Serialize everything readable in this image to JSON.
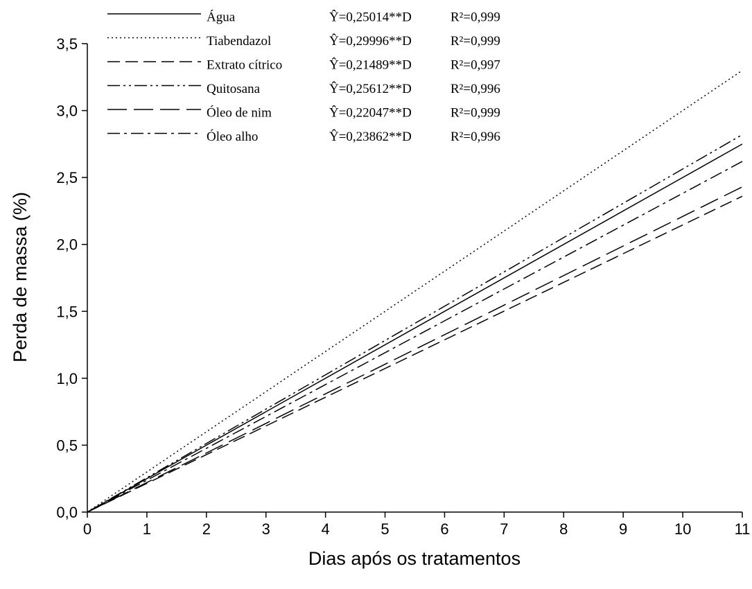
{
  "chart_data": {
    "type": "line",
    "xlabel": "Dias após os tratamentos",
    "ylabel": "Perda de massa  (%)",
    "x": [
      0,
      11
    ],
    "xlim": [
      0,
      11
    ],
    "xticks": [
      0,
      1,
      2,
      3,
      4,
      5,
      6,
      7,
      8,
      9,
      10,
      11
    ],
    "ylim": [
      0,
      3.5
    ],
    "yticks": [
      {
        "value": 0,
        "label": "0,0"
      },
      {
        "value": 0.5,
        "label": "0,5"
      },
      {
        "value": 1,
        "label": "1,0"
      },
      {
        "value": 1.5,
        "label": "1,5"
      },
      {
        "value": 2,
        "label": "2,0"
      },
      {
        "value": 2.5,
        "label": "2,5"
      },
      {
        "value": 3,
        "label": "3,0"
      },
      {
        "value": 3.5,
        "label": "3,5"
      }
    ],
    "series": [
      {
        "name": "Água",
        "color": "#000000",
        "dash": "none",
        "equation": "Ŷ=0,25014**D",
        "r2": "R²=0,999",
        "values": [
          0,
          2.75
        ]
      },
      {
        "name": "Tiabendazol",
        "color": "#000000",
        "dash": "2,4",
        "equation": "Ŷ=0,29996**D",
        "r2": "R²=0,999",
        "values": [
          0,
          3.3
        ]
      },
      {
        "name": "Extrato cítrico",
        "color": "#000000",
        "dash": "18,8",
        "equation": "Ŷ=0,21489**D",
        "r2": "R²=0,997",
        "values": [
          0,
          2.36
        ]
      },
      {
        "name": "Quitosana",
        "color": "#000000",
        "dash": "18,5,3,5,3,5",
        "equation": "Ŷ=0,25612**D",
        "r2": "R²=0,996",
        "values": [
          0,
          2.82
        ]
      },
      {
        "name": "Óleo de nim",
        "color": "#000000",
        "dash": "28,10",
        "equation": "Ŷ=0,22047**D",
        "r2": "R²=0,999",
        "values": [
          0,
          2.43
        ]
      },
      {
        "name": "Óleo alho",
        "color": "#000000",
        "dash": "18,6,4,6",
        "equation": "Ŷ=0,23862**D",
        "r2": "R²=0,996",
        "values": [
          0,
          2.62
        ]
      }
    ]
  }
}
